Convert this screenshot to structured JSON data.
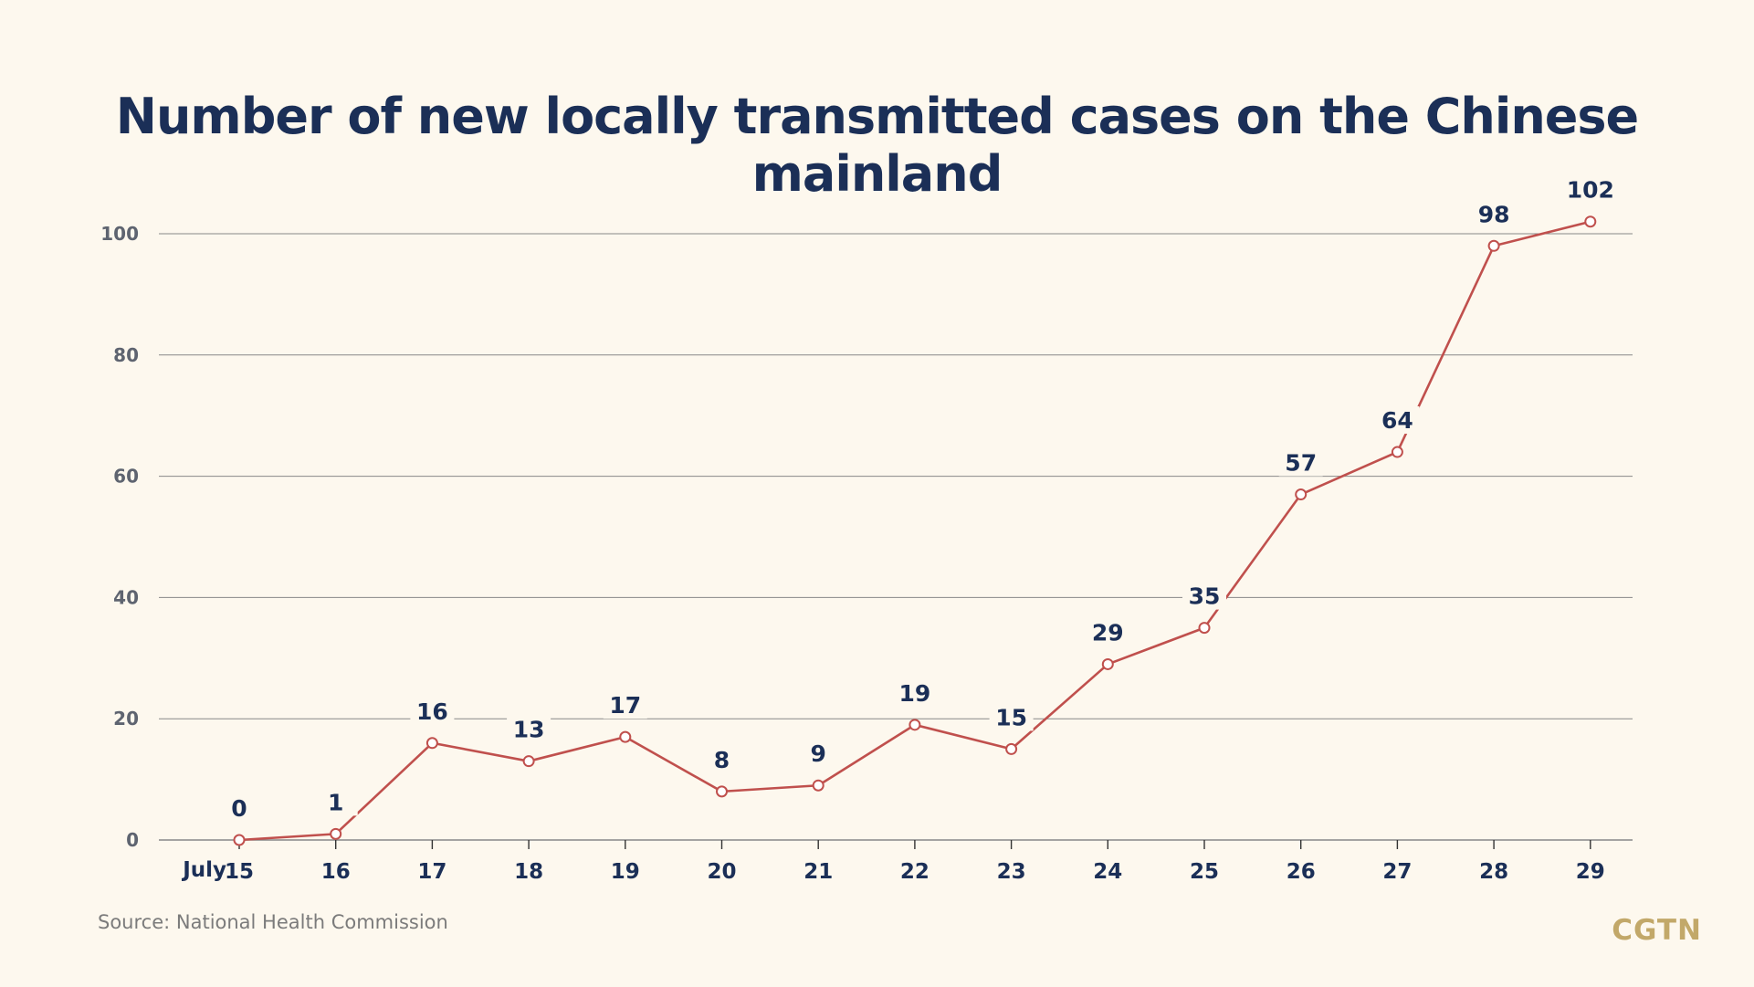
{
  "chart_data": {
    "type": "line",
    "title": "Number of new locally transmitted cases on the Chinese mainland",
    "x_prefix": "July",
    "categories": [
      "15",
      "16",
      "17",
      "18",
      "19",
      "20",
      "21",
      "22",
      "23",
      "24",
      "25",
      "26",
      "27",
      "28",
      "29"
    ],
    "series": [
      {
        "values": [
          0,
          1,
          16,
          13,
          17,
          8,
          9,
          19,
          15,
          29,
          35,
          57,
          64,
          98,
          102
        ]
      }
    ],
    "y_ticks": [
      0,
      20,
      40,
      60,
      80,
      100
    ],
    "ylim": [
      0,
      105
    ],
    "grid": true,
    "line_color": "#c0504d",
    "grid_color": "#888888"
  },
  "footer": {
    "source": "Source: National Health Commission",
    "logo": "CGTN"
  }
}
